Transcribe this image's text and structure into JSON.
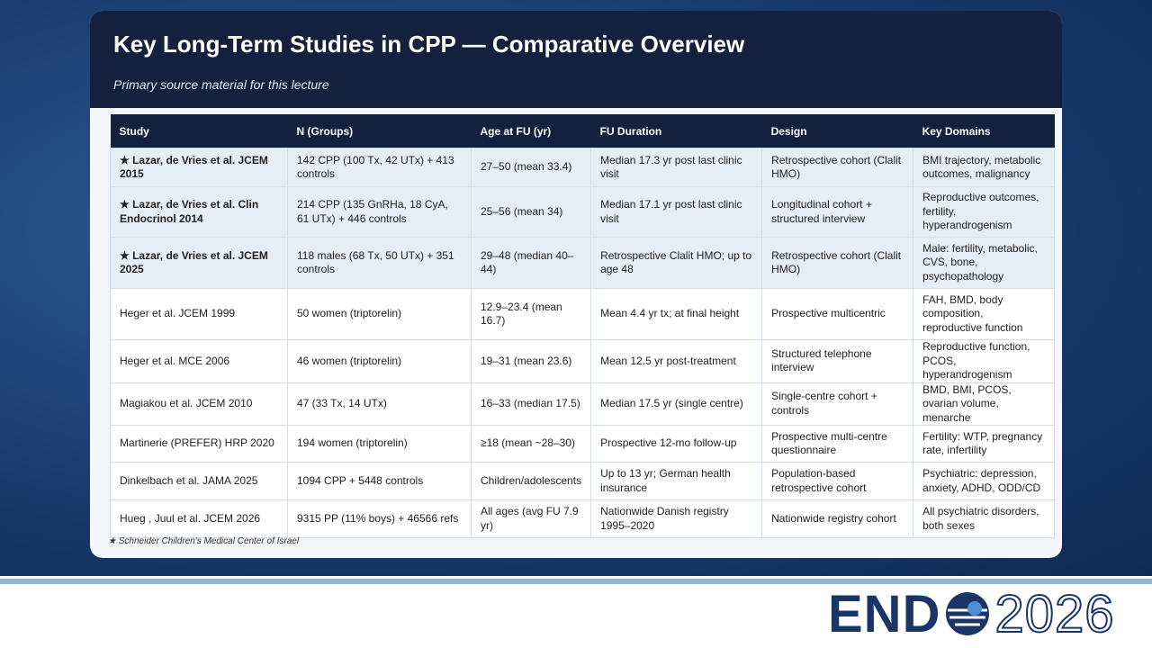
{
  "header": {
    "title": "Key Long-Term Studies in CPP — Comparative Overview",
    "subtitle": "Primary source material for this lecture"
  },
  "table": {
    "columns": [
      "Study",
      "N (Groups)",
      "Age at FU (yr)",
      "FU Duration",
      "Design",
      "Key Domains"
    ],
    "rows": [
      [
        "★ Lazar, de Vries et al. JCEM 2015",
        "142 CPP (100 Tx, 42 UTx) + 413 controls",
        "27–50 (mean 33.4)",
        "Median 17.3 yr post last clinic visit",
        "Retrospective cohort (Clalit HMO)",
        "BMI trajectory, metabolic outcomes, malignancy"
      ],
      [
        "★ Lazar, de Vries et al. Clin Endocrinol 2014",
        "214 CPP (135 GnRHa, 18 CyA, 61 UTx) + 446 controls",
        "25–56 (mean 34)",
        "Median 17.1 yr post last clinic visit",
        "Longitudinal cohort + structured interview",
        "Reproductive outcomes, fertility, hyperandrogenism"
      ],
      [
        "★ Lazar, de Vries et al. JCEM 2025",
        "118 males (68 Tx, 50 UTx) + 351 controls",
        "29–48 (median 40–44)",
        "Retrospective Clalit HMO; up to age 48",
        "Retrospective cohort (Clalit HMO)",
        "Male: fertility, metabolic, CVS, bone, psychopathology"
      ],
      [
        "Heger et al. JCEM 1999",
        "50 women (triptorelin)",
        "12.9–23.4 (mean 16.7)",
        "Mean 4.4 yr tx; at final height",
        "Prospective multicentric",
        "FAH, BMD, body composition, reproductive function"
      ],
      [
        "Heger et al. MCE 2006",
        "46 women (triptorelin)",
        "19–31 (mean 23.6)",
        "Mean 12.5 yr post-treatment",
        "Structured telephone interview",
        "Reproductive function, PCOS, hyperandrogenism"
      ],
      [
        "Magiakou et al. JCEM 2010",
        "47 (33 Tx, 14 UTx)",
        "16–33 (median 17.5)",
        "Median 17.5 yr (single centre)",
        "Single-centre cohort + controls",
        "BMD, BMI, PCOS, ovarian volume, menarche"
      ],
      [
        "Martinerie (PREFER) HRP 2020",
        "194 women (triptorelin)",
        "≥18 (mean ~28–30)",
        "Prospective 12-mo follow-up",
        "Prospective multi-centre questionnaire",
        "Fertility: WTP, pregnancy rate, infertility"
      ],
      [
        "Dinkelbach et al. JAMA 2025",
        "1094 CPP + 5448 controls",
        "Children/adolescents",
        "Up to 13 yr; German health insurance",
        "Population-based retrospective cohort",
        "Psychiatric: depression, anxiety, ADHD, ODD/CD"
      ],
      [
        "Hueg , Juul et al. JCEM 2026",
        "9315 PP (11% boys) + 46566 refs",
        "All ages (avg FU 7.9 yr)",
        "Nationwide Danish registry 1995–2020",
        "Nationwide registry cohort",
        "All psychiatric disorders, both sexes"
      ]
    ]
  },
  "footnote": "★ Schneider Children's Medical Center of Israel",
  "logo": {
    "left": "END",
    "right": "2026"
  }
}
